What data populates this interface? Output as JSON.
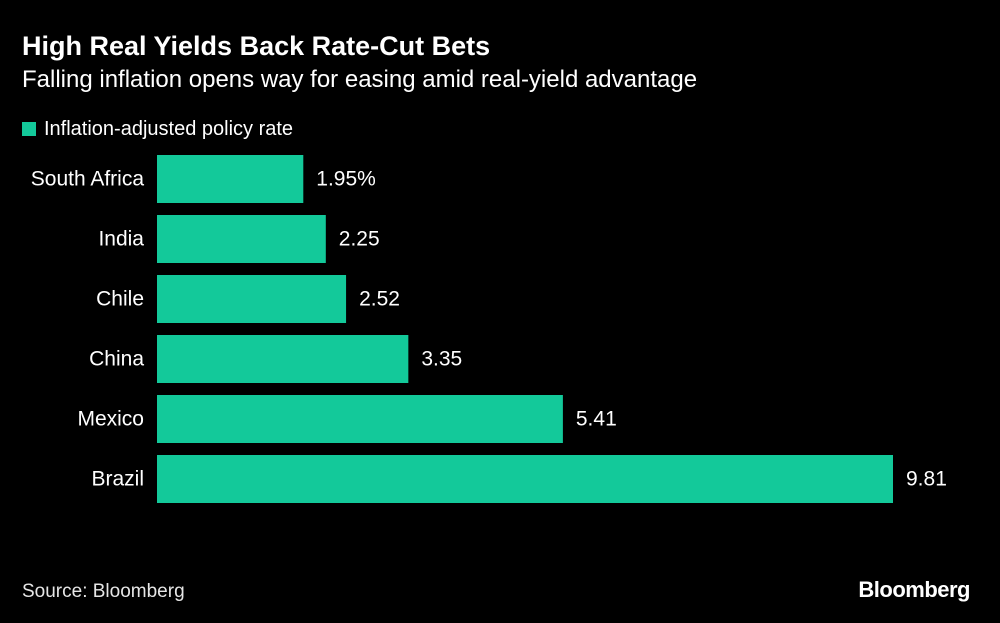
{
  "header": {
    "title": "High Real Yields Back Rate-Cut Bets",
    "subtitle": "Falling inflation opens way for easing amid real-yield advantage"
  },
  "legend": {
    "label": "Inflation-adjusted policy rate"
  },
  "colors": {
    "bar": "#13c99a",
    "background": "#000000",
    "text": "#ffffff"
  },
  "chart_data": {
    "type": "bar",
    "orientation": "horizontal",
    "categories": [
      "South Africa",
      "India",
      "Chile",
      "China",
      "Mexico",
      "Brazil"
    ],
    "series": [
      {
        "name": "Inflation-adjusted policy rate",
        "values": [
          1.95,
          2.25,
          2.52,
          3.35,
          5.41,
          9.81
        ]
      }
    ],
    "value_labels": [
      "1.95%",
      "2.25",
      "2.52",
      "3.35",
      "5.41",
      "9.81"
    ],
    "title": "High Real Yields Back Rate-Cut Bets",
    "subtitle": "Falling inflation opens way for easing amid real-yield advantage",
    "xlabel": "",
    "ylabel": "",
    "xlim": [
      0,
      9.81
    ],
    "grid": false,
    "legend_position": "top-left"
  },
  "footer": {
    "source": "Source: Bloomberg",
    "brand": "Bloomberg"
  }
}
